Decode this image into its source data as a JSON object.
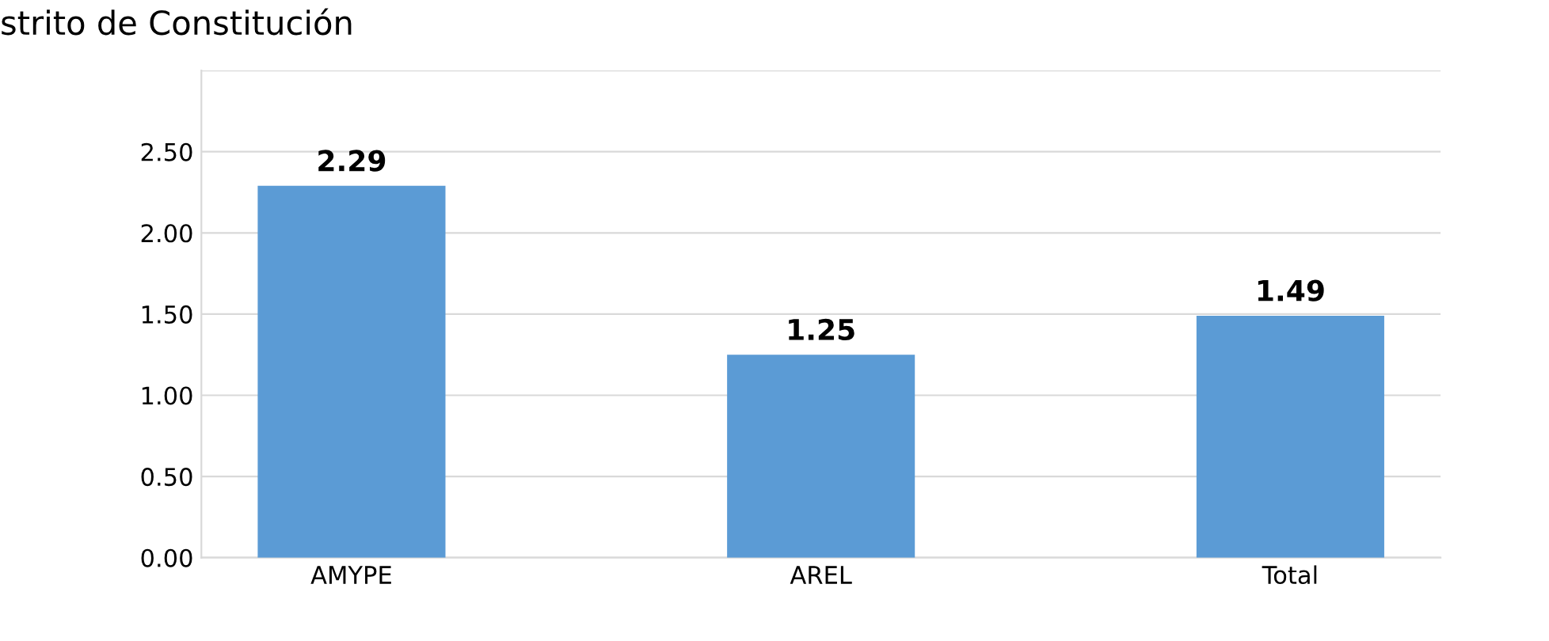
{
  "chart_data": {
    "type": "bar",
    "title": "strito de Constitución",
    "categories": [
      "AMYPE",
      "AREL",
      "Total"
    ],
    "values": [
      2.29,
      1.25,
      1.49
    ],
    "color": "#5b9bd5",
    "ylim": [
      0,
      3
    ],
    "yticks": [
      {
        "value": 0,
        "label": "0.00"
      },
      {
        "value": 0.5,
        "label": "0.50"
      },
      {
        "value": 1,
        "label": "1.00"
      },
      {
        "value": 1.5,
        "label": "1.50"
      },
      {
        "value": 2,
        "label": "2.00"
      },
      {
        "value": 2.5,
        "label": "2.50"
      },
      {
        "value": 3,
        "label": null
      }
    ],
    "grid": "y",
    "data_labels": true
  }
}
